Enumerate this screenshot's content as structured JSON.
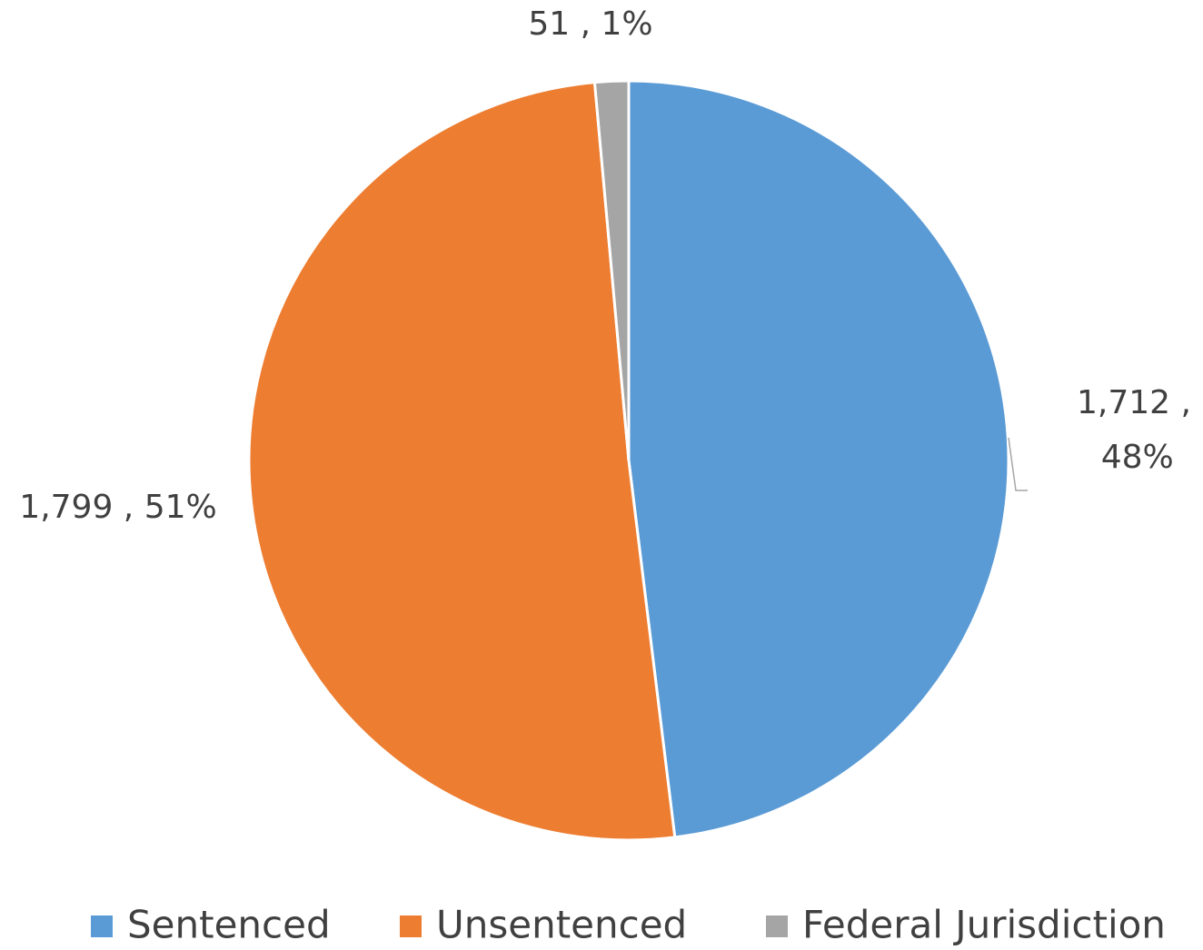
{
  "chart_data": {
    "type": "pie",
    "categories": [
      "Sentenced",
      "Unsentenced",
      "Federal Jurisdiction"
    ],
    "values": [
      1712,
      1799,
      51
    ],
    "value_labels": [
      "1,712 , 48%",
      "1,799 , 51%",
      "51 , 1%"
    ],
    "colors": [
      "#5b9bd5",
      "#ed7d31",
      "#a5a5a5"
    ],
    "legend": "bottom"
  }
}
